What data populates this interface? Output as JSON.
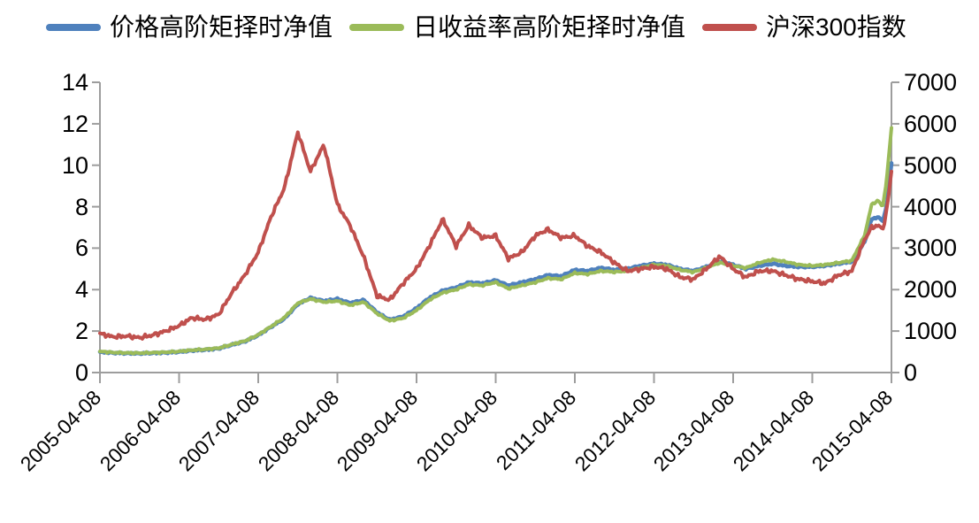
{
  "chart_data": {
    "type": "line",
    "title": "",
    "grid": false,
    "legend_position": "top",
    "x_axis": {
      "tick_labels": [
        "2005-04-08",
        "2006-04-08",
        "2007-04-08",
        "2008-04-08",
        "2009-04-08",
        "2010-04-08",
        "2011-04-08",
        "2012-04-08",
        "2013-04-08",
        "2014-04-08",
        "2015-04-08"
      ],
      "tick_years": [
        2005.27,
        2006.27,
        2007.27,
        2008.27,
        2009.27,
        2010.27,
        2011.27,
        2012.27,
        2013.27,
        2014.27,
        2015.27
      ]
    },
    "y_axis_left": {
      "min": 0,
      "max": 14,
      "ticks": [
        0,
        2,
        4,
        6,
        8,
        10,
        12,
        14
      ]
    },
    "y_axis_right": {
      "min": 0,
      "max": 7000,
      "ticks": [
        0,
        1000,
        2000,
        3000,
        4000,
        5000,
        6000,
        7000
      ]
    },
    "x": [
      2005.27,
      2005.43,
      2005.6,
      2005.77,
      2005.93,
      2006.1,
      2006.27,
      2006.43,
      2006.6,
      2006.77,
      2006.93,
      2007.1,
      2007.27,
      2007.43,
      2007.6,
      2007.77,
      2007.93,
      2008.1,
      2008.27,
      2008.43,
      2008.6,
      2008.77,
      2008.93,
      2009.1,
      2009.27,
      2009.43,
      2009.6,
      2009.77,
      2009.93,
      2010.1,
      2010.27,
      2010.43,
      2010.6,
      2010.77,
      2010.93,
      2011.1,
      2011.27,
      2011.43,
      2011.6,
      2011.77,
      2011.93,
      2012.1,
      2012.27,
      2012.43,
      2012.6,
      2012.77,
      2012.93,
      2013.1,
      2013.27,
      2013.43,
      2013.6,
      2013.77,
      2013.93,
      2014.1,
      2014.27,
      2014.43,
      2014.6,
      2014.77,
      2014.93,
      2015.02,
      2015.1,
      2015.16,
      2015.21,
      2015.27
    ],
    "series": [
      {
        "name": "价格高阶矩择时净值",
        "color": "#4F81BD",
        "axis": "left",
        "values": [
          1.0,
          0.95,
          0.93,
          0.92,
          0.94,
          0.96,
          1.0,
          1.06,
          1.1,
          1.16,
          1.33,
          1.5,
          1.8,
          2.2,
          2.6,
          3.3,
          3.6,
          3.45,
          3.55,
          3.35,
          3.5,
          2.9,
          2.55,
          2.7,
          3.1,
          3.6,
          3.95,
          4.1,
          4.35,
          4.3,
          4.45,
          4.2,
          4.35,
          4.5,
          4.7,
          4.65,
          4.95,
          4.9,
          5.05,
          4.95,
          5.0,
          5.15,
          5.25,
          5.2,
          5.0,
          4.9,
          5.1,
          5.35,
          5.2,
          5.0,
          5.15,
          5.25,
          5.15,
          5.1,
          5.1,
          5.15,
          5.25,
          5.35,
          6.3,
          7.4,
          7.5,
          7.3,
          8.0,
          10.1
        ]
      },
      {
        "name": "日收益率高阶矩择时净值",
        "color": "#9BBB59",
        "axis": "left",
        "values": [
          1.02,
          0.97,
          0.95,
          0.94,
          0.96,
          0.98,
          1.02,
          1.08,
          1.12,
          1.18,
          1.35,
          1.52,
          1.82,
          2.22,
          2.65,
          3.35,
          3.55,
          3.4,
          3.45,
          3.25,
          3.4,
          2.85,
          2.5,
          2.62,
          3.0,
          3.5,
          3.85,
          4.0,
          4.25,
          4.2,
          4.35,
          4.05,
          4.2,
          4.35,
          4.55,
          4.5,
          4.8,
          4.75,
          4.9,
          4.85,
          4.9,
          5.05,
          5.2,
          5.15,
          4.95,
          4.85,
          5.05,
          5.3,
          5.15,
          5.05,
          5.3,
          5.45,
          5.35,
          5.2,
          5.15,
          5.2,
          5.3,
          5.4,
          6.6,
          8.1,
          8.3,
          8.0,
          9.3,
          11.8
        ]
      },
      {
        "name": "沪深300指数",
        "color": "#C0504D",
        "axis": "right",
        "values": [
          950,
          860,
          880,
          840,
          900,
          1000,
          1130,
          1320,
          1280,
          1400,
          1900,
          2350,
          2900,
          3750,
          4450,
          5800,
          4850,
          5500,
          4050,
          3550,
          2800,
          1850,
          1750,
          2150,
          2500,
          3050,
          3700,
          3050,
          3550,
          3250,
          3300,
          2750,
          2900,
          3300,
          3450,
          3250,
          3300,
          3050,
          2900,
          2650,
          2450,
          2500,
          2550,
          2500,
          2300,
          2250,
          2500,
          2800,
          2500,
          2300,
          2450,
          2450,
          2350,
          2250,
          2200,
          2150,
          2350,
          2450,
          3200,
          3500,
          3550,
          3450,
          3900,
          4850
        ]
      }
    ]
  },
  "styles": {
    "axis_color": "#9d9d9d",
    "text_color": "#000000",
    "background": "#ffffff"
  }
}
